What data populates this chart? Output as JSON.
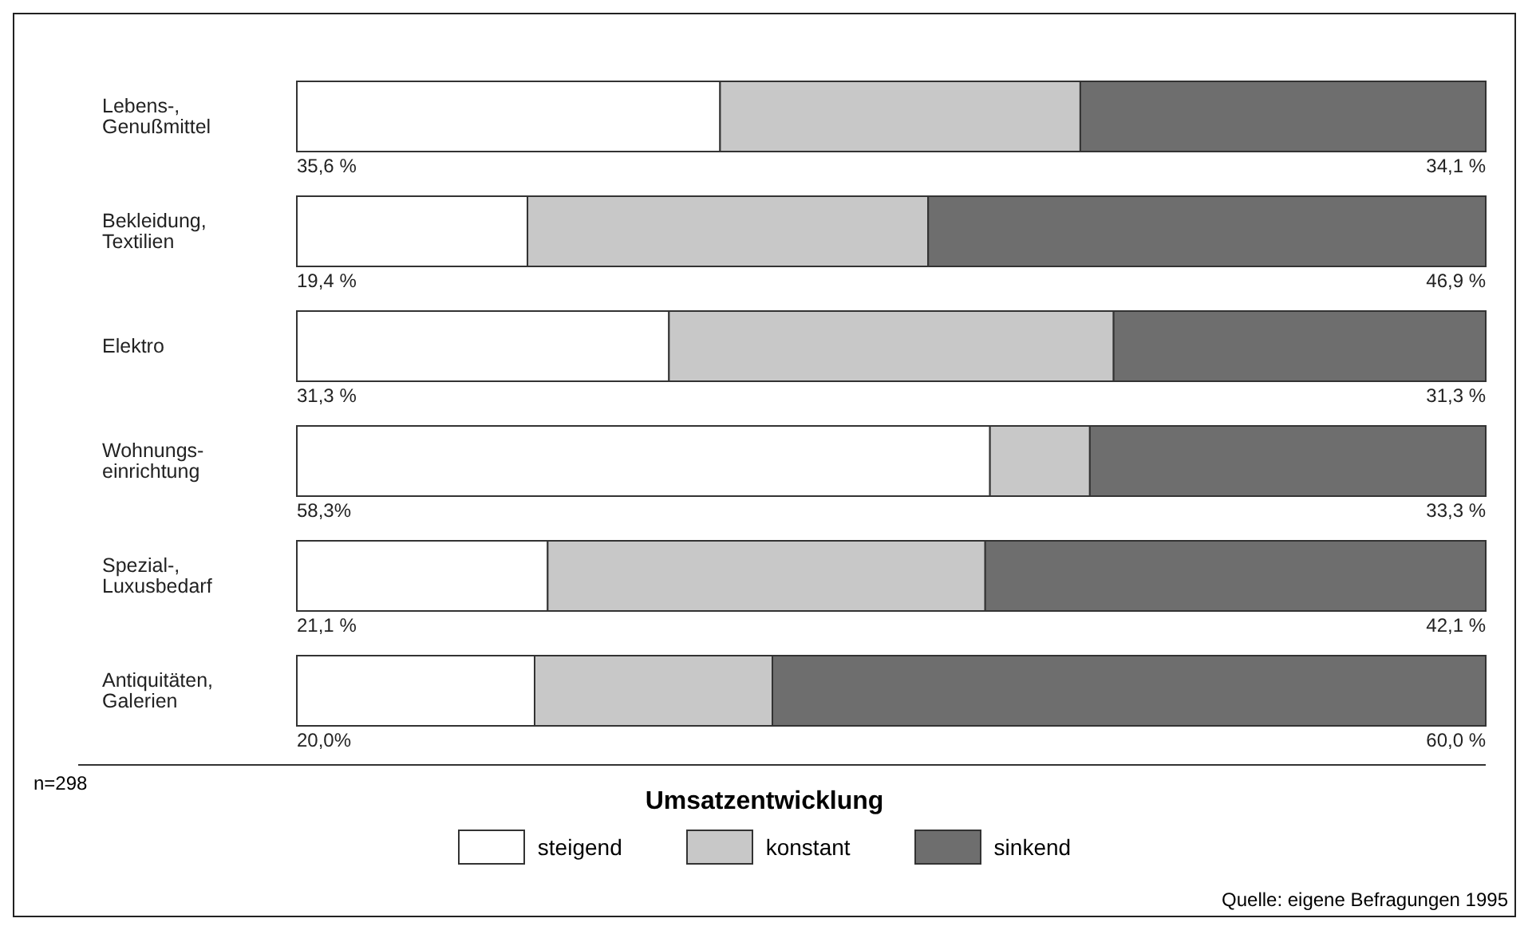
{
  "chart_data": {
    "type": "bar",
    "orientation": "horizontal",
    "stacked": true,
    "categories": [
      "Lebens-,\nGenußmittel",
      "Bekleidung,\nTextilien",
      "Elektro",
      "Wohnungs-\neinrichtung",
      "Spezial-,\nLuxusbedarf",
      "Antiquitäten,\nGalerien"
    ],
    "series": [
      {
        "name": "steigend",
        "color": "#ffffff",
        "values": [
          35.6,
          19.4,
          31.3,
          58.3,
          21.1,
          20.0
        ],
        "value_labels": [
          "35,6 %",
          "19,4 %",
          "31,3 %",
          "58,3%",
          "21,1 %",
          "20,0%"
        ]
      },
      {
        "name": "konstant",
        "color": "#c8c8c8",
        "values": [
          30.3,
          33.7,
          37.4,
          8.4,
          36.8,
          20.0
        ],
        "value_labels": [
          null,
          null,
          null,
          null,
          null,
          null
        ]
      },
      {
        "name": "sinkend",
        "color": "#6e6e6e",
        "values": [
          34.1,
          46.9,
          31.3,
          33.3,
          42.1,
          60.0
        ],
        "value_labels": [
          "34,1 %",
          "46,9 %",
          "31,3 %",
          "33,3 %",
          "42,1 %",
          "60,0 %"
        ]
      }
    ],
    "legend": "bottom",
    "legend_title": "Umsatzentwicklung",
    "grid": false,
    "annotations": [
      "n=298",
      "Quelle: eigene Befragungen 1995"
    ]
  }
}
